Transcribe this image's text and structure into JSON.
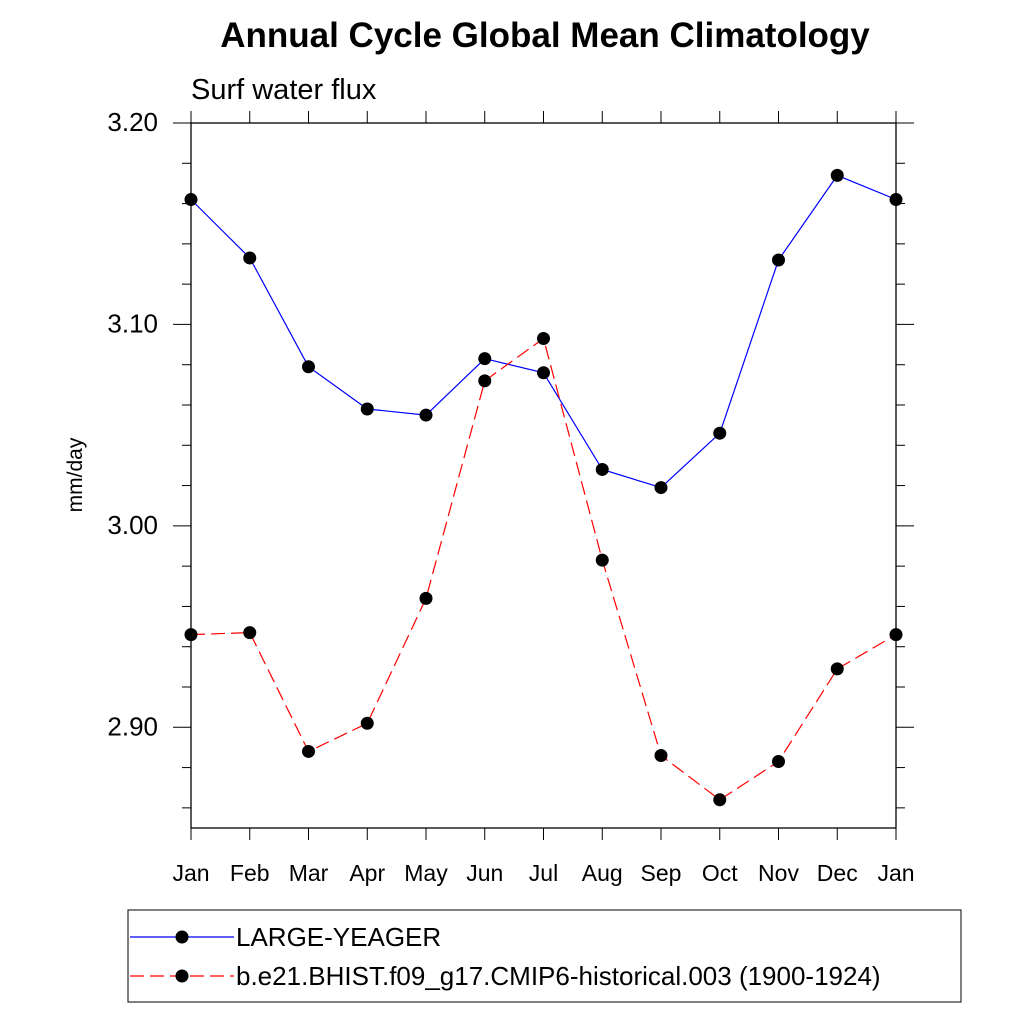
{
  "chart_data": {
    "type": "line",
    "title": "Annual Cycle Global Mean Climatology",
    "subtitle": "Surf water flux",
    "xlabel": "",
    "ylabel": "mm/day",
    "categories": [
      "Jan",
      "Feb",
      "Mar",
      "Apr",
      "May",
      "Jun",
      "Jul",
      "Aug",
      "Sep",
      "Oct",
      "Nov",
      "Dec",
      "Jan"
    ],
    "ylim": [
      2.85,
      3.2
    ],
    "yticks": [
      2.9,
      3.0,
      3.1,
      3.2
    ],
    "ytick_labels": [
      "2.90",
      "3.00",
      "3.10",
      "3.20"
    ],
    "grid": false,
    "legend_position": "bottom",
    "series": [
      {
        "name": "LARGE-YEAGER",
        "color": "#0000ff",
        "line_style": "solid",
        "marker": "filled-circle",
        "values": [
          3.162,
          3.133,
          3.079,
          3.058,
          3.055,
          3.083,
          3.076,
          3.028,
          3.019,
          3.046,
          3.132,
          3.174,
          3.162
        ]
      },
      {
        "name": "b.e21.BHIST.f09_g17.CMIP6-historical.003 (1900-1924)",
        "color": "#ff0000",
        "line_style": "dashed",
        "marker": "filled-circle",
        "values": [
          2.946,
          2.947,
          2.888,
          2.902,
          2.964,
          3.072,
          3.093,
          2.983,
          2.886,
          2.864,
          2.883,
          2.929,
          2.946
        ]
      }
    ]
  }
}
